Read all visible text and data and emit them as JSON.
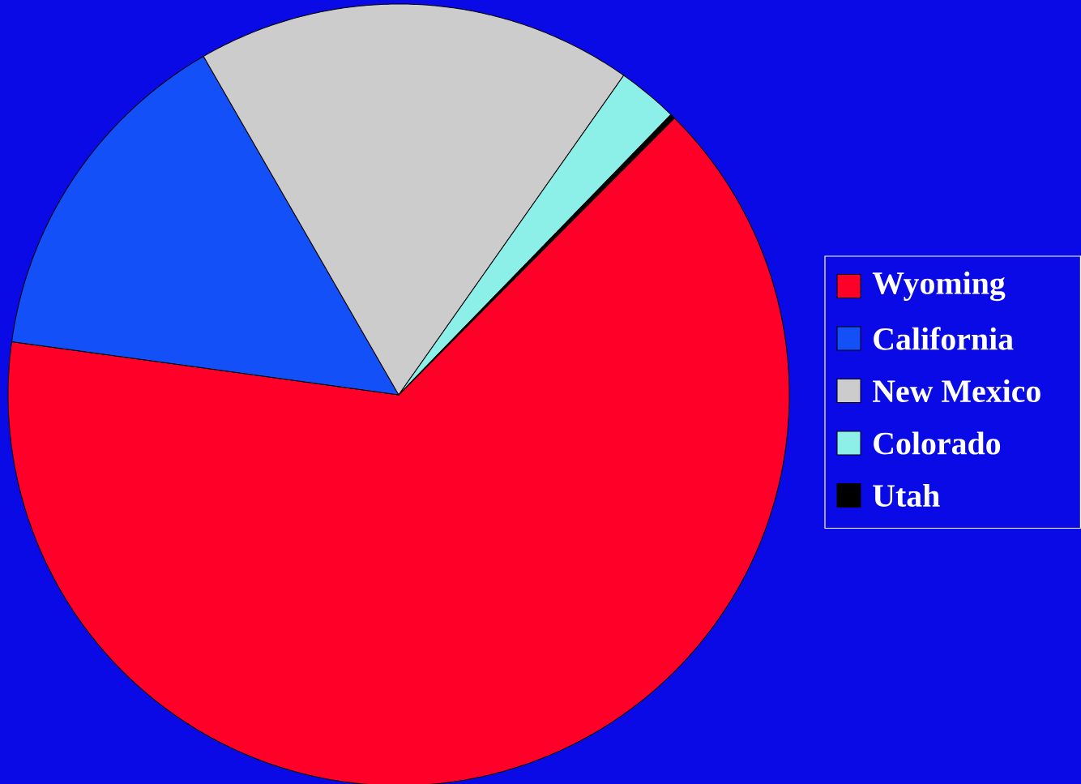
{
  "chart_data": {
    "type": "pie",
    "categories": [
      "Wyoming",
      "California",
      "New Mexico",
      "Colorado",
      "Utah"
    ],
    "values": [
      64.7,
      14.5,
      18.1,
      2.5,
      0.2
    ],
    "colors": [
      "#ff0028",
      "#1450f8",
      "#cccccc",
      "#8cf0e8",
      "#000000"
    ],
    "legend": "right"
  }
}
